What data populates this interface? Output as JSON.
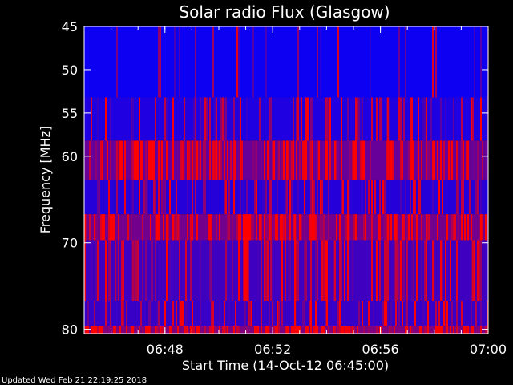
{
  "chart_data": {
    "type": "heatmap",
    "title": "Solar radio Flux (Glasgow)",
    "xlabel": "Start Time (14-Oct-12 06:45:00)",
    "ylabel": "Frequency [MHz]",
    "x_range_minutes": [
      0,
      15
    ],
    "x_ticks": [
      {
        "minute": 3,
        "label": "06:48"
      },
      {
        "minute": 7,
        "label": "06:52"
      },
      {
        "minute": 11,
        "label": "06:56"
      },
      {
        "minute": 15,
        "label": "07:00"
      }
    ],
    "ylim": [
      45,
      80.5
    ],
    "y_ticks": [
      {
        "value": 45,
        "label": "45"
      },
      {
        "value": 50,
        "label": "50"
      },
      {
        "value": 55,
        "label": "55"
      },
      {
        "value": 60,
        "label": "60"
      },
      {
        "value": 70,
        "label": "70"
      },
      {
        "value": 80,
        "label": "80"
      }
    ],
    "colormap": {
      "low": "#0000ff",
      "high": "#ff0000"
    },
    "bands": [
      {
        "from": 45.0,
        "to": 53.2,
        "intensity": 0.05,
        "spikes": 0.12
      },
      {
        "from": 53.2,
        "to": 58.2,
        "intensity": 0.12,
        "spikes": 0.35
      },
      {
        "from": 58.2,
        "to": 62.7,
        "intensity": 0.4,
        "spikes": 0.55
      },
      {
        "from": 62.7,
        "to": 66.7,
        "intensity": 0.15,
        "spikes": 0.3
      },
      {
        "from": 66.7,
        "to": 69.7,
        "intensity": 0.45,
        "spikes": 0.5
      },
      {
        "from": 69.7,
        "to": 76.7,
        "intensity": 0.25,
        "spikes": 0.4
      },
      {
        "from": 76.7,
        "to": 79.6,
        "intensity": 0.22,
        "spikes": 0.35
      },
      {
        "from": 79.6,
        "to": 80.5,
        "intensity": 0.5,
        "spikes": 0.6
      }
    ]
  },
  "footer": {
    "updated": "Updated Wed Feb 21 22:19:25 2018"
  },
  "colors": {
    "background": "#000000",
    "axes": "#ffffff"
  }
}
